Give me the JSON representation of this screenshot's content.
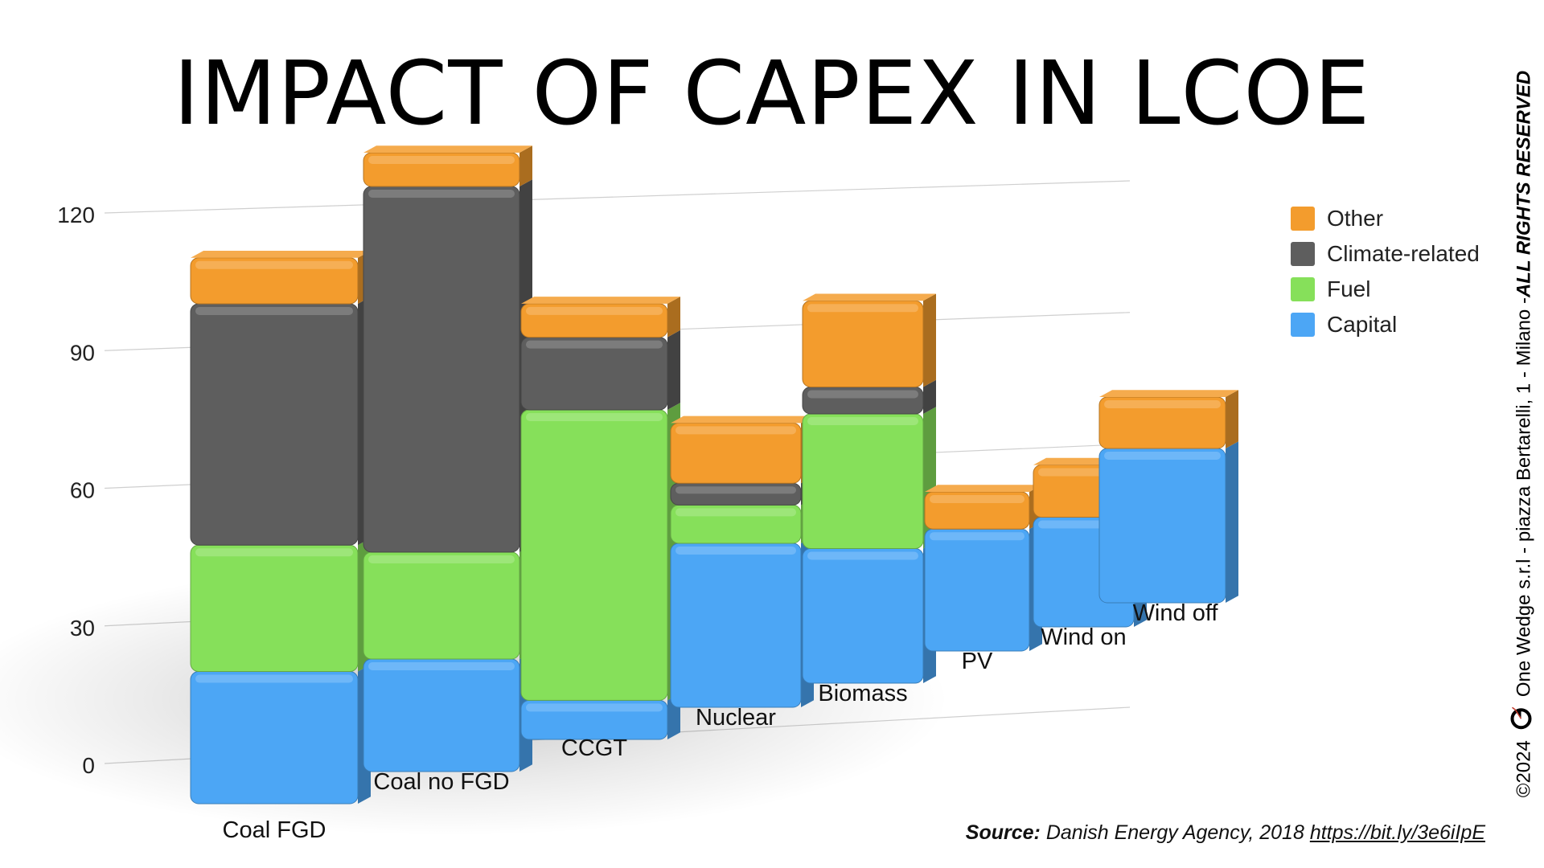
{
  "title": "IMPACT OF CAPEX IN LCOE",
  "legend": {
    "items": [
      {
        "label": "Other",
        "color": "#F39C2D"
      },
      {
        "label": "Climate-related",
        "color": "#5E5E5E"
      },
      {
        "label": "Fuel",
        "color": "#86E05A"
      },
      {
        "label": "Capital",
        "color": "#4CA6F5"
      }
    ]
  },
  "source": {
    "label": "Source:",
    "text": " Danish Energy Agency, 2018 ",
    "link": "https://bit.ly/3e6iIpE"
  },
  "side": {
    "copyright": "©2024",
    "company": "One Wedge s.r.l - piazza Bertarelli, 1 - Milano - ",
    "rights": "ALL RIGHTS RESERVED",
    "logo_icon": "one-wedge-logo-icon"
  },
  "chart_data": {
    "type": "bar",
    "stacked": true,
    "style": "3d",
    "ylim": [
      0,
      120
    ],
    "yticks": [
      0,
      30,
      60,
      90,
      120
    ],
    "grid": true,
    "legend_position": "right",
    "categories": [
      "Coal FGD",
      "Coal no FGD",
      "CCGT",
      "Nuclear",
      "Biomass",
      "PV",
      "Wind on",
      "Wind off"
    ],
    "series": [
      {
        "name": "Capital",
        "color": "#4CA6F5",
        "values": [
          23,
          20,
          7,
          30,
          25,
          23,
          21,
          30
        ]
      },
      {
        "name": "Fuel",
        "color": "#86E05A",
        "values": [
          22,
          19,
          52,
          7,
          25,
          0,
          0,
          0
        ]
      },
      {
        "name": "Climate-related",
        "color": "#5E5E5E",
        "values": [
          42,
          65,
          13,
          4,
          5,
          0,
          0,
          0
        ]
      },
      {
        "name": "Other",
        "color": "#F39C2D",
        "values": [
          8,
          6,
          6,
          11,
          16,
          7,
          10,
          10
        ]
      }
    ]
  }
}
